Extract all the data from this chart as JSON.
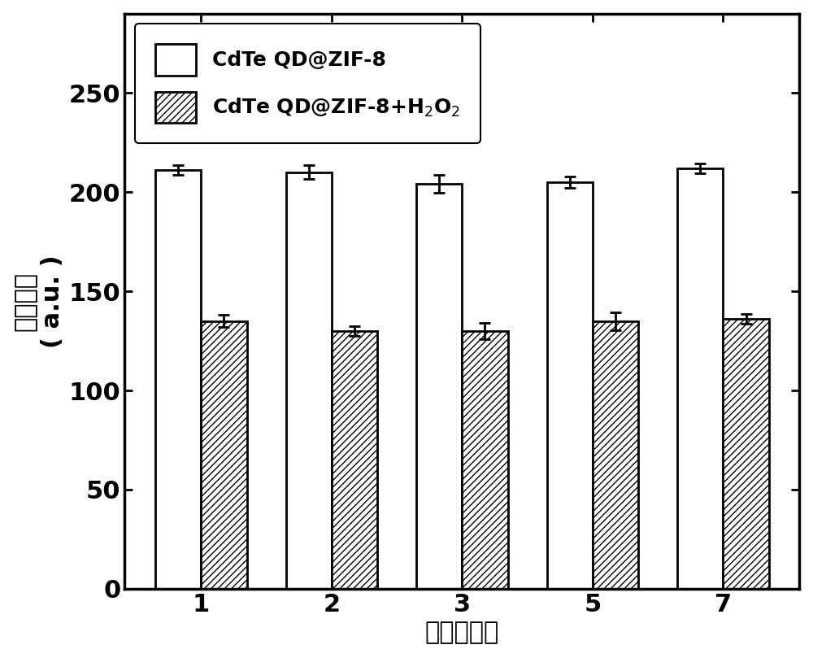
{
  "categories": [
    1,
    2,
    3,
    5,
    7
  ],
  "white_values": [
    211,
    210,
    204,
    205,
    212
  ],
  "white_errors": [
    2.5,
    3.5,
    4.5,
    3.0,
    2.5
  ],
  "hatch_values": [
    135,
    130,
    130,
    135,
    136
  ],
  "hatch_errors": [
    3.0,
    2.5,
    4.0,
    4.5,
    2.5
  ],
  "xlabel": "时间（天）",
  "ylabel_line1": "荧光强度",
  "ylabel_line2": "( a.u. )",
  "ylim": [
    0,
    290
  ],
  "yticks": [
    0,
    50,
    100,
    150,
    200,
    250
  ],
  "legend_white": "CdTe QD@ZIF-8",
  "legend_hatch": "CdTe QD@ZIF-8+H$_2$O$_2$",
  "bar_width": 0.35,
  "white_color": "#ffffff",
  "hatch_color": "#ffffff",
  "hatch_pattern": "////",
  "edge_color": "#000000",
  "background_color": "#ffffff",
  "label_fontsize": 22,
  "tick_fontsize": 22,
  "legend_fontsize": 18
}
